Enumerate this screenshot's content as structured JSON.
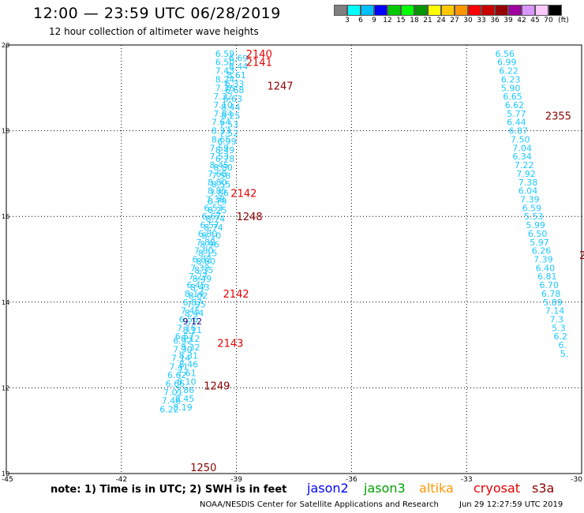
{
  "header": {
    "title": "12:00 — 23:59 UTC 06/28/2019",
    "subtitle": "12 hour collection of altimeter wave heights"
  },
  "legend": {
    "colors": [
      "#808080",
      "#00ffff",
      "#00bfff",
      "#0000ff",
      "#00c800",
      "#00ff00",
      "#009600",
      "#ffff00",
      "#ffc800",
      "#ff9600",
      "#ff0000",
      "#c80000",
      "#960000",
      "#a000a0",
      "#d896ff",
      "#ffc8ff",
      "#000000"
    ],
    "labels": [
      "3",
      "6",
      "9",
      "12",
      "15",
      "18",
      "21",
      "24",
      "27",
      "30",
      "33",
      "36",
      "39",
      "42",
      "45",
      "70",
      "(ft)"
    ]
  },
  "map": {
    "xticks": [
      -45,
      -42,
      -39,
      -36,
      -33,
      -30
    ],
    "yticks": [
      10,
      12,
      14,
      16,
      18,
      20
    ],
    "xlim": [
      -45,
      -30
    ],
    "ylim": [
      10,
      20
    ]
  },
  "chart_data": {
    "type": "scatter",
    "series": [
      {
        "track": "west-a",
        "color": "#1ec8ff",
        "points": [
          {
            "x": -39.3,
            "y": 19.8,
            "v": "6.59"
          },
          {
            "x": -39.3,
            "y": 19.6,
            "v": "6.50"
          },
          {
            "x": -39.3,
            "y": 19.4,
            "v": "7.43"
          },
          {
            "x": -39.3,
            "y": 19.2,
            "v": "8.24"
          },
          {
            "x": -39.3,
            "y": 19.0,
            "v": "7.36"
          },
          {
            "x": -39.35,
            "y": 18.8,
            "v": "7.32"
          },
          {
            "x": -39.35,
            "y": 18.6,
            "v": "7.10"
          },
          {
            "x": -39.35,
            "y": 18.4,
            "v": "7.84"
          },
          {
            "x": -39.4,
            "y": 18.2,
            "v": "7.64"
          },
          {
            "x": -39.4,
            "y": 18.0,
            "v": "8.33"
          },
          {
            "x": -39.4,
            "y": 17.8,
            "v": "8.65"
          },
          {
            "x": -39.45,
            "y": 17.6,
            "v": "7.59"
          },
          {
            "x": -39.45,
            "y": 17.4,
            "v": "7.53"
          },
          {
            "x": -39.45,
            "y": 17.2,
            "v": "8.45"
          },
          {
            "x": -39.5,
            "y": 17.0,
            "v": "7.68"
          },
          {
            "x": -39.5,
            "y": 16.8,
            "v": "8.80"
          },
          {
            "x": -39.5,
            "y": 16.6,
            "v": "8.85"
          },
          {
            "x": -39.55,
            "y": 16.4,
            "v": "7.38"
          },
          {
            "x": -39.6,
            "y": 16.2,
            "v": "6.53"
          },
          {
            "x": -39.65,
            "y": 16.0,
            "v": "6.67"
          },
          {
            "x": -39.7,
            "y": 15.8,
            "v": "6.57"
          },
          {
            "x": -39.75,
            "y": 15.6,
            "v": "6.80"
          },
          {
            "x": -39.8,
            "y": 15.4,
            "v": "7.88"
          },
          {
            "x": -39.85,
            "y": 15.2,
            "v": "7.80"
          },
          {
            "x": -39.9,
            "y": 15.0,
            "v": "6.82"
          },
          {
            "x": -39.95,
            "y": 14.8,
            "v": "7.32"
          },
          {
            "x": -40.0,
            "y": 14.6,
            "v": "7.27"
          },
          {
            "x": -40.05,
            "y": 14.4,
            "v": "6.45"
          },
          {
            "x": -40.1,
            "y": 14.2,
            "v": "8.14"
          },
          {
            "x": -40.15,
            "y": 14.0,
            "v": "6.87"
          },
          {
            "x": -40.2,
            "y": 13.8,
            "v": "7.45"
          },
          {
            "x": -40.25,
            "y": 13.6,
            "v": "6.56"
          },
          {
            "x": -40.3,
            "y": 13.4,
            "v": "7.16"
          },
          {
            "x": -40.35,
            "y": 13.2,
            "v": "6.57"
          },
          {
            "x": -40.4,
            "y": 13.1,
            "v": "6.32"
          },
          {
            "x": -40.4,
            "y": 12.9,
            "v": "7.30"
          },
          {
            "x": -40.45,
            "y": 12.7,
            "v": "7.14"
          },
          {
            "x": -40.5,
            "y": 12.5,
            "v": "7.41"
          },
          {
            "x": -40.55,
            "y": 12.3,
            "v": "6.62"
          },
          {
            "x": -40.6,
            "y": 12.1,
            "v": "6.66"
          },
          {
            "x": -40.65,
            "y": 11.9,
            "v": "7.01"
          },
          {
            "x": -40.7,
            "y": 11.7,
            "v": "7.46"
          },
          {
            "x": -40.75,
            "y": 11.5,
            "v": "6.22"
          }
        ]
      },
      {
        "track": "west-b",
        "color": "#1ec8ff",
        "points": [
          {
            "x": -38.95,
            "y": 19.7,
            "v": "6.69"
          },
          {
            "x": -38.95,
            "y": 19.5,
            "v": "8.44"
          },
          {
            "x": -39.0,
            "y": 19.3,
            "v": "8.61"
          },
          {
            "x": -39.05,
            "y": 19.1,
            "v": "6.33"
          },
          {
            "x": -39.05,
            "y": 18.95,
            "v": "6.68"
          },
          {
            "x": -39.1,
            "y": 18.75,
            "v": "6.63"
          },
          {
            "x": -39.15,
            "y": 18.55,
            "v": "8.44"
          },
          {
            "x": -39.15,
            "y": 18.35,
            "v": "8.25"
          },
          {
            "x": -39.2,
            "y": 18.15,
            "v": "7.53"
          },
          {
            "x": -39.2,
            "y": 17.95,
            "v": "7.52"
          },
          {
            "x": -39.25,
            "y": 17.75,
            "v": "6.99"
          },
          {
            "x": -39.3,
            "y": 17.55,
            "v": "8.49"
          },
          {
            "x": -39.3,
            "y": 17.35,
            "v": "6.78"
          },
          {
            "x": -39.35,
            "y": 17.15,
            "v": "8.80"
          },
          {
            "x": -39.4,
            "y": 16.95,
            "v": "7.58"
          },
          {
            "x": -39.4,
            "y": 16.75,
            "v": "8.55"
          },
          {
            "x": -39.45,
            "y": 16.55,
            "v": "7.86"
          },
          {
            "x": -39.5,
            "y": 16.35,
            "v": "8.79"
          },
          {
            "x": -39.5,
            "y": 16.15,
            "v": "8.25"
          },
          {
            "x": -39.55,
            "y": 15.95,
            "v": "8.74"
          },
          {
            "x": -39.6,
            "y": 15.75,
            "v": "8.74"
          },
          {
            "x": -39.65,
            "y": 15.55,
            "v": "8.10"
          },
          {
            "x": -39.7,
            "y": 15.35,
            "v": "8.96"
          },
          {
            "x": -39.75,
            "y": 15.15,
            "v": "8.15"
          },
          {
            "x": -39.8,
            "y": 14.95,
            "v": "8.80"
          },
          {
            "x": -39.85,
            "y": 14.75,
            "v": "8.35"
          },
          {
            "x": -39.9,
            "y": 14.55,
            "v": "8.49"
          },
          {
            "x": -39.95,
            "y": 14.35,
            "v": "8.43"
          },
          {
            "x": -40.0,
            "y": 14.15,
            "v": "8.02"
          },
          {
            "x": -40.05,
            "y": 13.95,
            "v": "7.95"
          },
          {
            "x": -40.1,
            "y": 13.75,
            "v": "8.44"
          },
          {
            "x": -40.15,
            "y": 13.35,
            "v": "8.11"
          },
          {
            "x": -40.2,
            "y": 13.15,
            "v": "8.12"
          },
          {
            "x": -40.2,
            "y": 12.95,
            "v": "8.32"
          },
          {
            "x": -40.25,
            "y": 12.75,
            "v": "8.31"
          },
          {
            "x": -40.25,
            "y": 12.55,
            "v": "8.46"
          },
          {
            "x": -40.3,
            "y": 12.35,
            "v": "7.61"
          },
          {
            "x": -40.3,
            "y": 12.15,
            "v": "8.10"
          },
          {
            "x": -40.35,
            "y": 11.95,
            "v": "7.86"
          },
          {
            "x": -40.35,
            "y": 11.75,
            "v": "8.45"
          },
          {
            "x": -40.4,
            "y": 11.55,
            "v": "8.19"
          }
        ]
      },
      {
        "track": "west-b-jason2",
        "color": "#000080",
        "points": [
          {
            "x": -40.15,
            "y": 13.55,
            "v": "9.12"
          }
        ]
      },
      {
        "track": "east",
        "color": "#1ec8ff",
        "points": [
          {
            "x": -32.0,
            "y": 19.8,
            "v": "6.56"
          },
          {
            "x": -31.95,
            "y": 19.6,
            "v": "6.99"
          },
          {
            "x": -31.9,
            "y": 19.4,
            "v": "6.22"
          },
          {
            "x": -31.85,
            "y": 19.2,
            "v": "6.23"
          },
          {
            "x": -31.85,
            "y": 19.0,
            "v": "5.90"
          },
          {
            "x": -31.8,
            "y": 18.8,
            "v": "6.65"
          },
          {
            "x": -31.75,
            "y": 18.6,
            "v": "6.62"
          },
          {
            "x": -31.7,
            "y": 18.4,
            "v": "5.77"
          },
          {
            "x": -31.7,
            "y": 18.2,
            "v": "6.44"
          },
          {
            "x": -31.65,
            "y": 18.0,
            "v": "6.87"
          },
          {
            "x": -31.6,
            "y": 17.8,
            "v": "7.50"
          },
          {
            "x": -31.55,
            "y": 17.6,
            "v": "7.04"
          },
          {
            "x": -31.55,
            "y": 17.4,
            "v": "6.34"
          },
          {
            "x": -31.5,
            "y": 17.2,
            "v": "7.22"
          },
          {
            "x": -31.45,
            "y": 17.0,
            "v": "7.92"
          },
          {
            "x": -31.4,
            "y": 16.8,
            "v": "7.38"
          },
          {
            "x": -31.4,
            "y": 16.6,
            "v": "6.04"
          },
          {
            "x": -31.35,
            "y": 16.4,
            "v": "7.39"
          },
          {
            "x": -31.3,
            "y": 16.2,
            "v": "6.59"
          },
          {
            "x": -31.25,
            "y": 16.0,
            "v": "5.53"
          },
          {
            "x": -31.2,
            "y": 15.8,
            "v": "5.99"
          },
          {
            "x": -31.15,
            "y": 15.6,
            "v": "6.50"
          },
          {
            "x": -31.1,
            "y": 15.4,
            "v": "5.97"
          },
          {
            "x": -31.05,
            "y": 15.2,
            "v": "6.26"
          },
          {
            "x": -31.0,
            "y": 15.0,
            "v": "7.39"
          },
          {
            "x": -30.95,
            "y": 14.8,
            "v": "6.40"
          },
          {
            "x": -30.9,
            "y": 14.6,
            "v": "6.81"
          },
          {
            "x": -30.85,
            "y": 14.4,
            "v": "6.70"
          },
          {
            "x": -30.8,
            "y": 14.2,
            "v": "6.78"
          },
          {
            "x": -30.75,
            "y": 14.0,
            "v": "5.89"
          },
          {
            "x": -30.7,
            "y": 13.8,
            "v": "7.14"
          },
          {
            "x": -30.65,
            "y": 13.6,
            "v": "7.3"
          },
          {
            "x": -30.6,
            "y": 13.4,
            "v": "5.3"
          },
          {
            "x": -30.55,
            "y": 13.2,
            "v": "6.2"
          },
          {
            "x": -30.5,
            "y": 13.0,
            "v": "6."
          },
          {
            "x": -30.45,
            "y": 12.8,
            "v": "5."
          }
        ]
      }
    ],
    "labels": [
      {
        "x": -38.75,
        "y": 19.8,
        "text": "2140",
        "color": "#e60000"
      },
      {
        "x": -38.75,
        "y": 19.6,
        "text": "2141",
        "color": "#e60000"
      },
      {
        "x": -38.2,
        "y": 19.05,
        "text": "1247",
        "color": "#8b0000"
      },
      {
        "x": -39.15,
        "y": 16.55,
        "text": "2142",
        "color": "#e60000"
      },
      {
        "x": -39.0,
        "y": 16.0,
        "text": "1248",
        "color": "#8b0000"
      },
      {
        "x": -39.35,
        "y": 14.2,
        "text": "2142",
        "color": "#e60000"
      },
      {
        "x": -39.5,
        "y": 13.05,
        "text": "2143",
        "color": "#e60000"
      },
      {
        "x": -39.85,
        "y": 12.05,
        "text": "1249",
        "color": "#8b0000"
      },
      {
        "x": -40.2,
        "y": 10.15,
        "text": "1250",
        "color": "#8b0000"
      },
      {
        "x": -30.95,
        "y": 18.35,
        "text": "2355",
        "color": "#8b0000"
      },
      {
        "x": -30.06,
        "y": 15.1,
        "text": "2",
        "color": "#8b0000"
      }
    ]
  },
  "footer": {
    "note": "note:  1) Time is in UTC;  2) SWH is in feet",
    "satellites": [
      {
        "name": "jason2",
        "color": "#0000ff"
      },
      {
        "name": "jason3",
        "color": "#00a000"
      },
      {
        "name": "altika",
        "color": "#ff9600"
      },
      {
        "name": "cryosat",
        "color": "#e60000"
      },
      {
        "name": "s3a",
        "color": "#8b0000"
      }
    ],
    "credit": "NOAA/NESDIS Center for Satellite Applications and Research",
    "timestamp": "Jun 29 12:27:59 UTC 2019"
  }
}
